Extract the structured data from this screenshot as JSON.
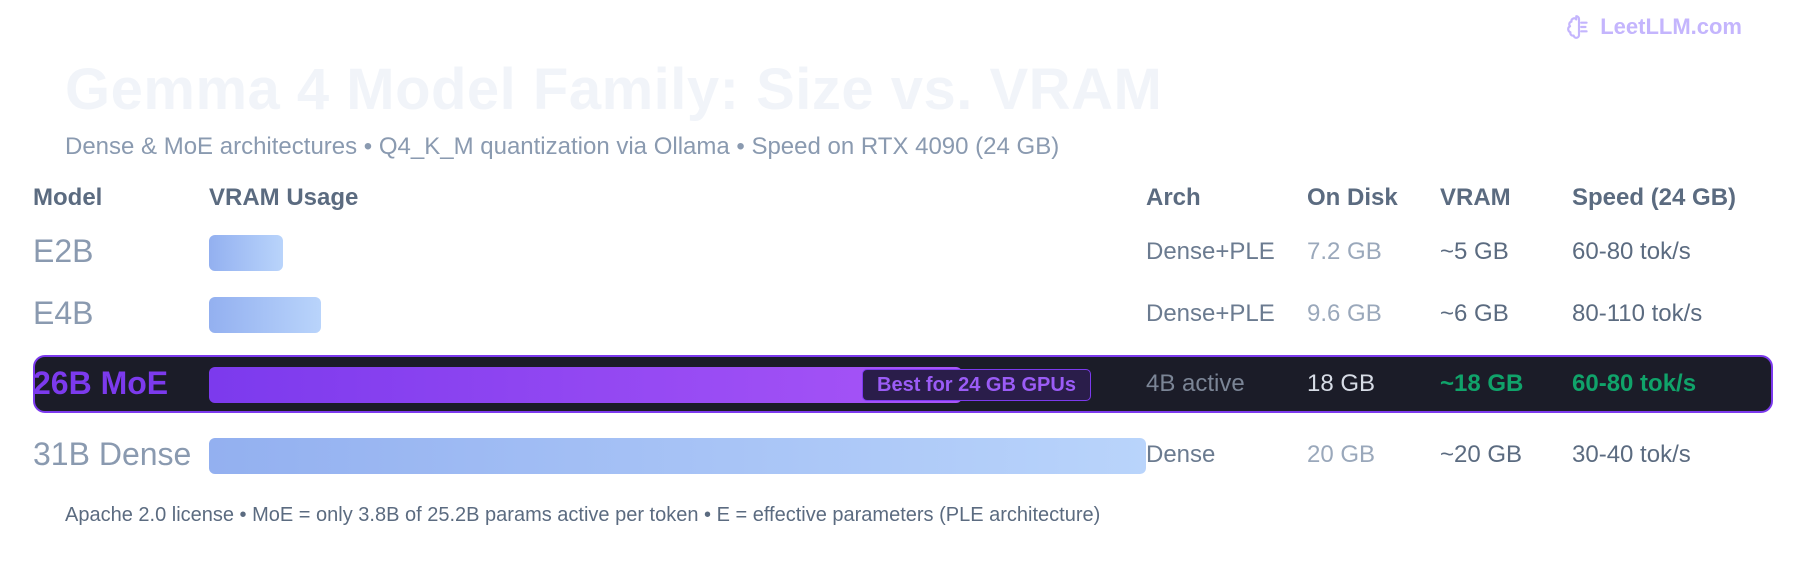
{
  "brand": {
    "name": "LeetLLM.com",
    "icon": "brain-icon"
  },
  "colors": {
    "bar_gradient": [
      "#93b0f0",
      "#b9d4fb"
    ],
    "highlight_bar_gradient": [
      "#7c3aed",
      "#a855f7"
    ],
    "highlight_band": "#1b1c28",
    "accent": "#7c3aed",
    "good": "#10a36a"
  },
  "chart_data": {
    "type": "bar",
    "orientation": "horizontal",
    "title": "Gemma 4 Model Family: Size vs. VRAM",
    "subtitle": "Dense & MoE architectures • Q4_K_M quantization via Ollama • Speed on RTX 4090 (24 GB)",
    "columns": [
      "Model",
      "VRAM Usage",
      "Arch",
      "On Disk",
      "VRAM",
      "Speed (24 GB)"
    ],
    "max_vram_gb": 20,
    "rows": [
      {
        "model": "E2B",
        "vram_gb": 5,
        "arch": "Dense+PLE",
        "on_disk": "7.2 GB",
        "vram": "~5 GB",
        "speed": "60-80 tok/s",
        "highlight": false,
        "badge": ""
      },
      {
        "model": "E4B",
        "vram_gb": 6,
        "arch": "Dense+PLE",
        "on_disk": "9.6 GB",
        "vram": "~6 GB",
        "speed": "80-110 tok/s",
        "highlight": false,
        "badge": ""
      },
      {
        "model": "26B MoE",
        "vram_gb": 18,
        "arch": "4B active",
        "on_disk": "18 GB",
        "vram": "~18 GB",
        "speed": "60-80 tok/s",
        "highlight": true,
        "badge": "Best for 24 GB GPUs"
      },
      {
        "model": "31B Dense",
        "vram_gb": 20,
        "arch": "Dense",
        "on_disk": "20 GB",
        "vram": "~20 GB",
        "speed": "30-40 tok/s",
        "highlight": false,
        "badge": ""
      }
    ],
    "footnote": "Apache 2.0 license • MoE = only 3.8B of 25.2B params active per token • E = effective parameters (PLE architecture)"
  }
}
